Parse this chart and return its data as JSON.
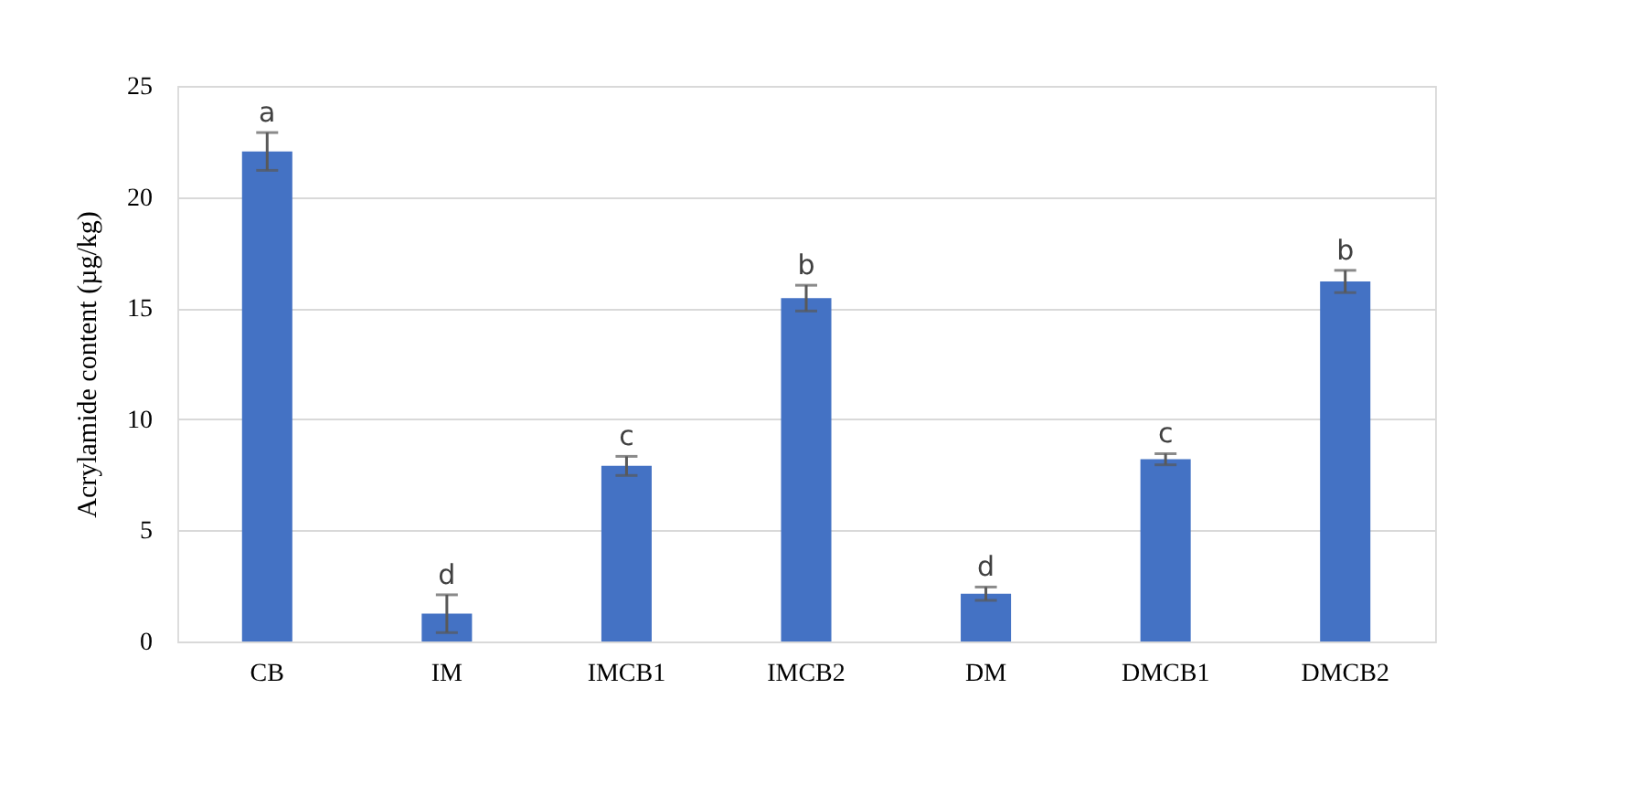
{
  "chart_data": {
    "type": "bar",
    "ylabel": "Acrylamide content (µg/kg)",
    "categories": [
      "CB",
      "IM",
      "IMCB1",
      "IMCB2",
      "DM",
      "DMCB1",
      "DMCB2"
    ],
    "values": [
      22.05,
      1.25,
      7.9,
      15.45,
      2.15,
      8.2,
      16.2
    ],
    "errors": [
      0.85,
      0.85,
      0.43,
      0.58,
      0.3,
      0.25,
      0.5
    ],
    "color": "#4472c4",
    "ylim": [
      0,
      25
    ],
    "yticks": [
      0,
      5,
      10,
      15,
      20,
      25
    ],
    "grid": "y",
    "annotations": [
      {
        "text": "a",
        "x": "CB",
        "y": 22.9
      },
      {
        "text": "d",
        "x": "IM",
        "y": 2.1
      },
      {
        "text": "c",
        "x": "IMCB1",
        "y": 8.33
      },
      {
        "text": "b",
        "x": "IMCB2",
        "y": 16.03
      },
      {
        "text": "d",
        "x": "DM",
        "y": 2.45
      },
      {
        "text": "c",
        "x": "DMCB1",
        "y": 8.45
      },
      {
        "text": "b",
        "x": "DMCB2",
        "y": 16.7
      }
    ]
  }
}
